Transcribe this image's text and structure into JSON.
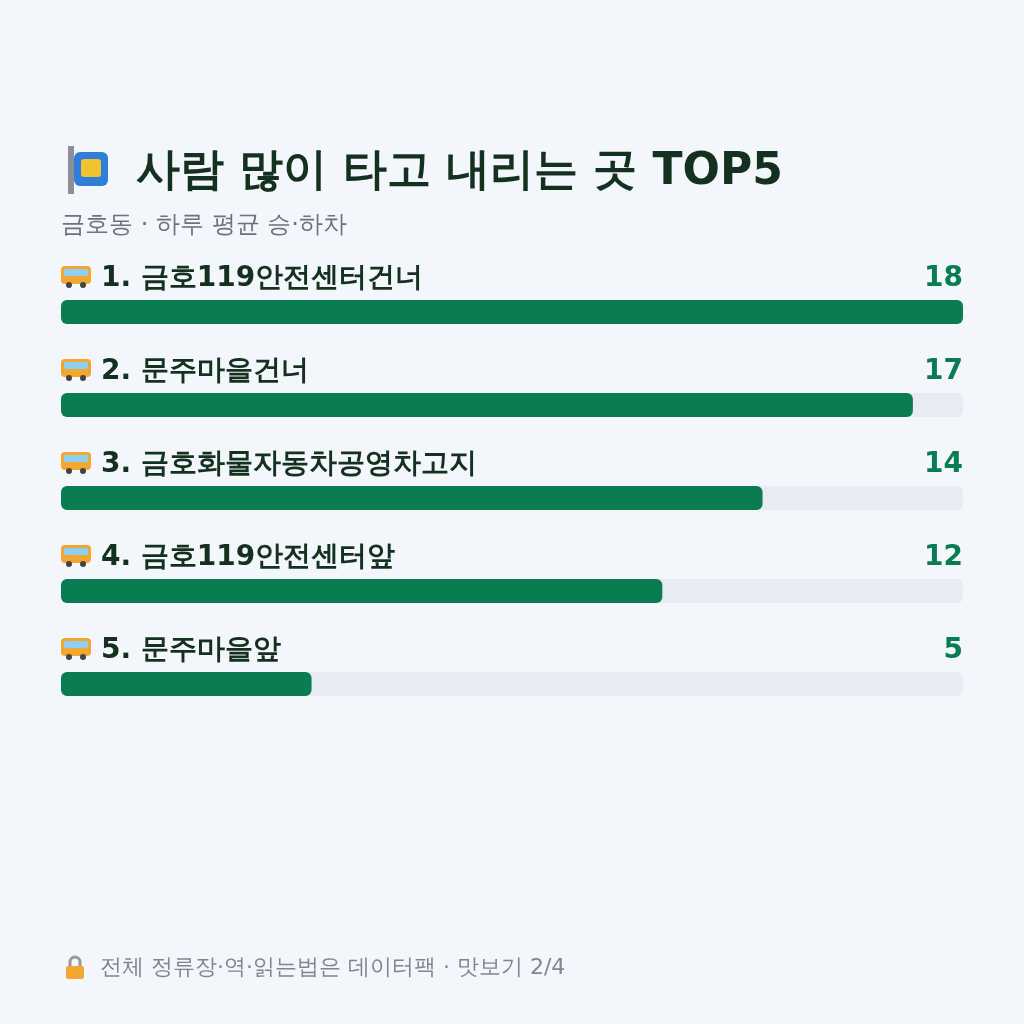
{
  "chart_data": {
    "type": "bar",
    "orientation": "horizontal",
    "title": "사람 많이 타고 내리는 곳 TOP5",
    "subtitle": "금호동 · 하루 평균 승·하차",
    "categories": [
      "1. 금호119안전센터건너",
      "2. 문주마을건너",
      "3. 금호화물자동차공영차고지",
      "4. 금호119안전센터앞",
      "5. 문주마을앞"
    ],
    "values": [
      18,
      17,
      14,
      12,
      5
    ],
    "color": "#0a7c52",
    "data_labels": true,
    "annotations": [
      "전체 정류장·역·읽는법은 데이터팩 · 맛보기 2/4"
    ]
  }
}
